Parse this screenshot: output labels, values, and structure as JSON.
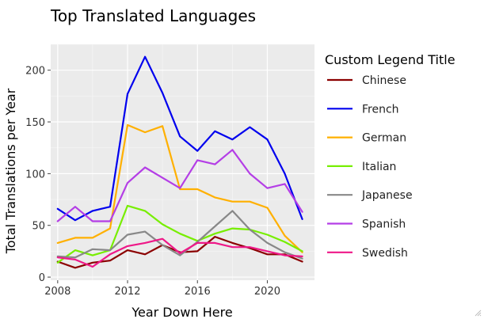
{
  "chart_data": {
    "type": "line",
    "title": "Top Translated Languages",
    "xlabel": "Year Down Here",
    "ylabel": "Total Translations per Year",
    "legend_title": "Custom Legend Title",
    "legend_position": "right",
    "grid": true,
    "xlim": [
      2007.6,
      2022.7
    ],
    "ylim": [
      -3,
      225
    ],
    "x_ticks": [
      2008,
      2012,
      2016,
      2020
    ],
    "y_ticks": [
      0,
      50,
      100,
      150,
      200
    ],
    "x": [
      2008,
      2009,
      2010,
      2011,
      2012,
      2013,
      2014,
      2015,
      2016,
      2017,
      2018,
      2019,
      2020,
      2021,
      2022
    ],
    "series": [
      {
        "name": "Chinese",
        "color": "#8b0000",
        "values": [
          15,
          9,
          14,
          16,
          26,
          22,
          31,
          24,
          25,
          39,
          33,
          28,
          22,
          22,
          15
        ]
      },
      {
        "name": "French",
        "color": "#0000ee",
        "values": [
          66,
          55,
          64,
          68,
          177,
          213,
          178,
          136,
          122,
          141,
          133,
          145,
          133,
          100,
          56
        ]
      },
      {
        "name": "German",
        "color": "#ffb000",
        "values": [
          33,
          38,
          38,
          47,
          147,
          140,
          146,
          85,
          85,
          77,
          73,
          73,
          67,
          40,
          24
        ]
      },
      {
        "name": "Italian",
        "color": "#77ee00",
        "values": [
          14,
          26,
          21,
          26,
          69,
          64,
          51,
          42,
          35,
          42,
          47,
          46,
          41,
          34,
          25
        ]
      },
      {
        "name": "Japanese",
        "color": "#888888",
        "values": [
          20,
          19,
          27,
          26,
          41,
          44,
          31,
          21,
          34,
          49,
          64,
          46,
          33,
          24,
          18
        ]
      },
      {
        "name": "Spanish",
        "color": "#b43ee6",
        "values": [
          54,
          68,
          54,
          54,
          91,
          106,
          96,
          86,
          113,
          109,
          123,
          100,
          86,
          90,
          63
        ]
      },
      {
        "name": "Swedish",
        "color": "#ee1888",
        "values": [
          19,
          17,
          10,
          22,
          30,
          33,
          37,
          23,
          33,
          33,
          29,
          29,
          25,
          21,
          20
        ]
      }
    ]
  }
}
